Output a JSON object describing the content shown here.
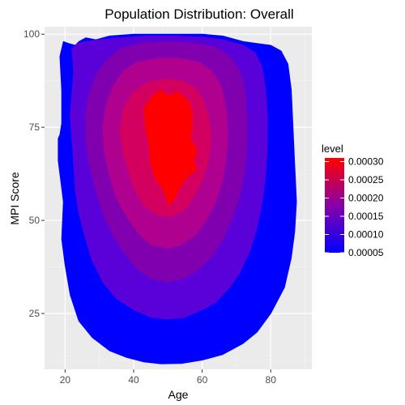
{
  "chart_data": {
    "type": "density_contour",
    "title": "Population Distribution: Overall",
    "xlabel": "Age",
    "ylabel": "MPI Score",
    "xlim": [
      14,
      92
    ],
    "ylim": [
      10,
      102
    ],
    "x_ticks": [
      20,
      40,
      60,
      80
    ],
    "y_ticks": [
      25,
      50,
      75,
      100
    ],
    "grid": true,
    "legend": {
      "title": "level",
      "position": "right",
      "range": [
        5e-05,
        0.00031
      ],
      "ticks": [
        "0.00030",
        "0.00025",
        "0.00020",
        "0.00015",
        "0.00010",
        "0.00005"
      ],
      "color_low": "#0000ff",
      "color_high": "#ff0000"
    },
    "peak": {
      "x": 50,
      "y": 68
    },
    "levels": [
      {
        "level": 5e-05,
        "color": "#0000ff"
      },
      {
        "level": 0.0001,
        "color": "#5a00d8"
      },
      {
        "level": 0.00015,
        "color": "#8000b0"
      },
      {
        "level": 0.0002,
        "color": "#b00090"
      },
      {
        "level": 0.00025,
        "color": "#d40060"
      },
      {
        "level": 0.0003,
        "color": "#ff0000"
      }
    ]
  }
}
